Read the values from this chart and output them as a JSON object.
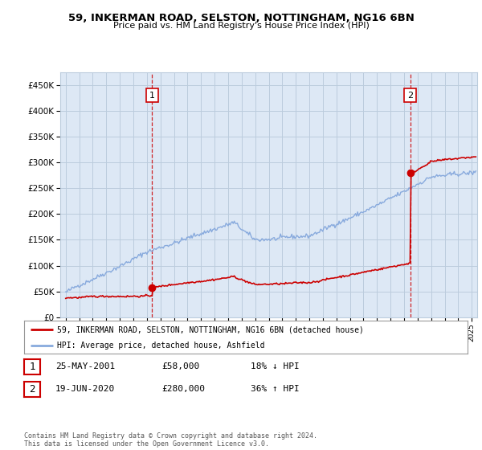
{
  "title": "59, INKERMAN ROAD, SELSTON, NOTTINGHAM, NG16 6BN",
  "subtitle": "Price paid vs. HM Land Registry's House Price Index (HPI)",
  "ylabel_ticks": [
    "£0",
    "£50K",
    "£100K",
    "£150K",
    "£200K",
    "£250K",
    "£300K",
    "£350K",
    "£400K",
    "£450K"
  ],
  "ytick_values": [
    0,
    50000,
    100000,
    150000,
    200000,
    250000,
    300000,
    350000,
    400000,
    450000
  ],
  "ylim": [
    0,
    475000
  ],
  "xlim_start": 1994.6,
  "xlim_end": 2025.4,
  "sale1_x": 2001.39,
  "sale1_y": 58000,
  "sale2_x": 2020.46,
  "sale2_y": 280000,
  "line_color_red": "#cc0000",
  "line_color_blue": "#88aadd",
  "dashed_color": "#cc0000",
  "chart_bg": "#dde8f5",
  "legend_entries": [
    "59, INKERMAN ROAD, SELSTON, NOTTINGHAM, NG16 6BN (detached house)",
    "HPI: Average price, detached house, Ashfield"
  ],
  "table_rows": [
    [
      "1",
      "25-MAY-2001",
      "£58,000",
      "18% ↓ HPI"
    ],
    [
      "2",
      "19-JUN-2020",
      "£280,000",
      "36% ↑ HPI"
    ]
  ],
  "footnote": "Contains HM Land Registry data © Crown copyright and database right 2024.\nThis data is licensed under the Open Government Licence v3.0.",
  "background_color": "#ffffff",
  "grid_color": "#bbccdd"
}
